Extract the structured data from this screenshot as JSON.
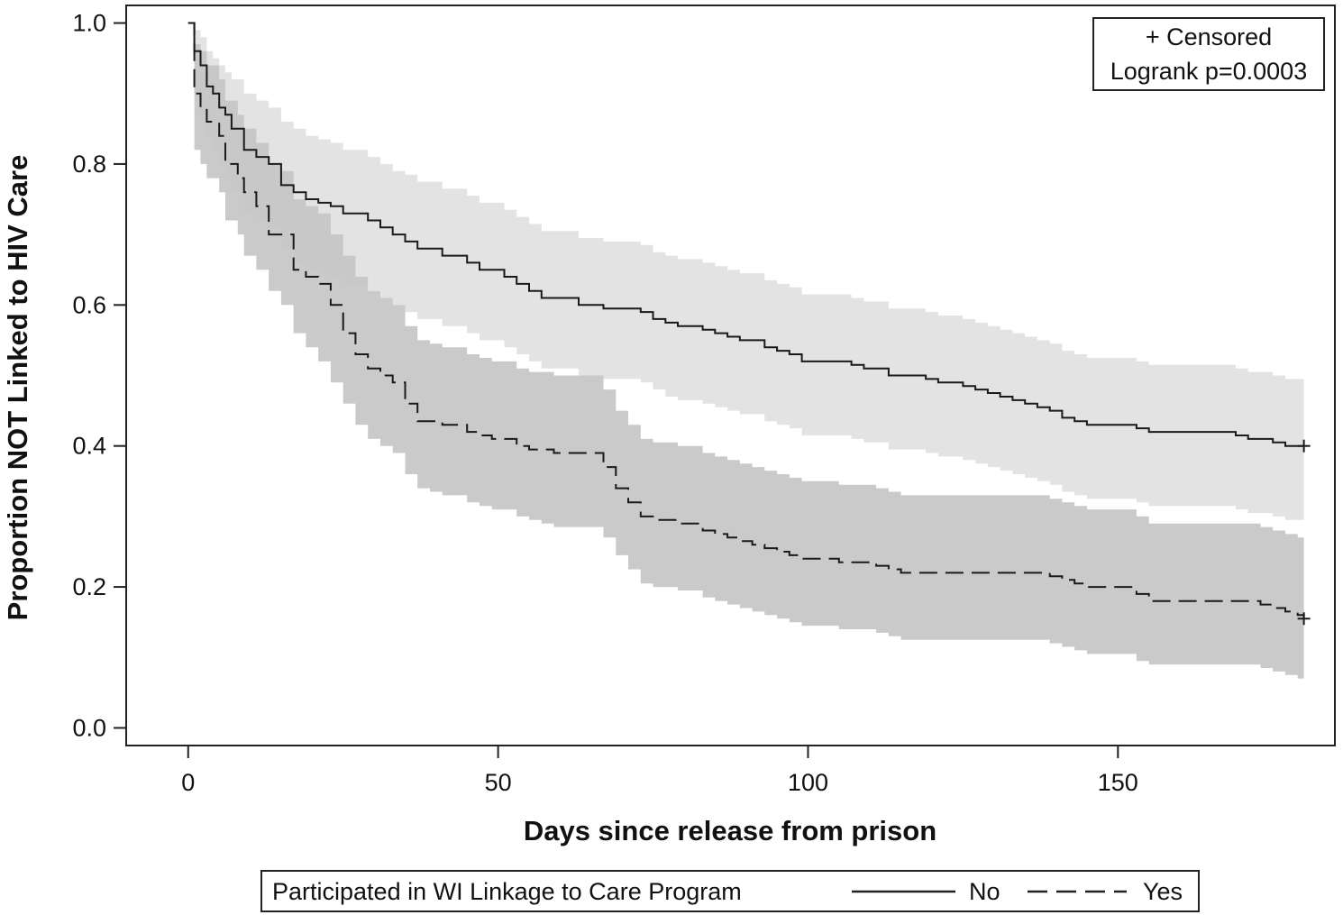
{
  "chart_data": {
    "type": "line",
    "title": "",
    "xlabel": "Days since release from prison",
    "ylabel": "Proportion NOT Linked to HIV Care",
    "xlim": [
      -10,
      185
    ],
    "ylim": [
      -0.025,
      1.025
    ],
    "x_ticks": [
      0,
      50,
      100,
      150
    ],
    "x_tick_labels": [
      "0",
      "50",
      "100",
      "150"
    ],
    "y_ticks": [
      0.0,
      0.2,
      0.4,
      0.6,
      0.8,
      1.0
    ],
    "y_tick_labels": [
      "0.0",
      "0.2",
      "0.4",
      "0.6",
      "0.8",
      "1.0"
    ],
    "grid": false,
    "inset": {
      "censored_label": "+ Censored",
      "logrank_label": "Logrank p=0.0003",
      "placement": "top-right"
    },
    "legend": {
      "title": "Participated in WI Linkage to Care Program",
      "placement": "bottom",
      "entries": [
        "No",
        "Yes"
      ]
    },
    "series": [
      {
        "name": "No",
        "line_style": "solid",
        "band_color": "#e3e3e3",
        "x": [
          0,
          1,
          2,
          3,
          4,
          5,
          6,
          7,
          9,
          11,
          13,
          15,
          17,
          19,
          21,
          23,
          25,
          27,
          29,
          31,
          33,
          35,
          37,
          39,
          41,
          43,
          45,
          47,
          49,
          51,
          53,
          55,
          57,
          59,
          61,
          63,
          65,
          67,
          69,
          71,
          73,
          75,
          77,
          79,
          81,
          83,
          85,
          87,
          89,
          91,
          93,
          95,
          97,
          99,
          101,
          103,
          105,
          107,
          109,
          111,
          113,
          115,
          117,
          119,
          121,
          123,
          125,
          127,
          129,
          131,
          133,
          135,
          137,
          139,
          141,
          143,
          145,
          147,
          149,
          151,
          153,
          155,
          157,
          159,
          161,
          163,
          165,
          167,
          169,
          171,
          173,
          175,
          177,
          179,
          180
        ],
        "y": [
          1.0,
          0.96,
          0.94,
          0.91,
          0.9,
          0.88,
          0.87,
          0.85,
          0.82,
          0.81,
          0.8,
          0.77,
          0.76,
          0.75,
          0.745,
          0.74,
          0.73,
          0.73,
          0.72,
          0.71,
          0.7,
          0.69,
          0.68,
          0.68,
          0.67,
          0.67,
          0.66,
          0.65,
          0.65,
          0.64,
          0.63,
          0.62,
          0.61,
          0.61,
          0.61,
          0.6,
          0.6,
          0.595,
          0.595,
          0.595,
          0.59,
          0.58,
          0.575,
          0.57,
          0.57,
          0.565,
          0.56,
          0.555,
          0.55,
          0.55,
          0.54,
          0.535,
          0.53,
          0.52,
          0.52,
          0.52,
          0.52,
          0.515,
          0.51,
          0.51,
          0.5,
          0.5,
          0.5,
          0.495,
          0.49,
          0.49,
          0.485,
          0.48,
          0.475,
          0.47,
          0.465,
          0.46,
          0.455,
          0.45,
          0.44,
          0.435,
          0.43,
          0.43,
          0.43,
          0.43,
          0.425,
          0.42,
          0.42,
          0.42,
          0.42,
          0.42,
          0.42,
          0.42,
          0.415,
          0.41,
          0.41,
          0.405,
          0.4,
          0.4,
          0.4
        ],
        "lower": [
          1.0,
          0.9,
          0.87,
          0.84,
          0.82,
          0.8,
          0.78,
          0.76,
          0.73,
          0.72,
          0.71,
          0.68,
          0.66,
          0.65,
          0.645,
          0.64,
          0.63,
          0.63,
          0.62,
          0.61,
          0.6,
          0.59,
          0.58,
          0.58,
          0.57,
          0.57,
          0.56,
          0.55,
          0.55,
          0.54,
          0.53,
          0.52,
          0.51,
          0.51,
          0.51,
          0.5,
          0.5,
          0.495,
          0.495,
          0.495,
          0.49,
          0.48,
          0.47,
          0.465,
          0.465,
          0.46,
          0.455,
          0.45,
          0.445,
          0.445,
          0.435,
          0.43,
          0.425,
          0.415,
          0.415,
          0.415,
          0.415,
          0.41,
          0.405,
          0.405,
          0.395,
          0.395,
          0.395,
          0.39,
          0.385,
          0.385,
          0.38,
          0.375,
          0.37,
          0.365,
          0.36,
          0.355,
          0.35,
          0.345,
          0.335,
          0.33,
          0.325,
          0.325,
          0.325,
          0.325,
          0.32,
          0.315,
          0.315,
          0.315,
          0.315,
          0.315,
          0.315,
          0.315,
          0.31,
          0.305,
          0.305,
          0.3,
          0.295,
          0.295,
          0.295
        ],
        "upper": [
          1.0,
          0.99,
          0.98,
          0.96,
          0.95,
          0.94,
          0.93,
          0.92,
          0.9,
          0.89,
          0.88,
          0.86,
          0.85,
          0.84,
          0.835,
          0.83,
          0.82,
          0.82,
          0.81,
          0.8,
          0.79,
          0.785,
          0.775,
          0.775,
          0.765,
          0.765,
          0.755,
          0.745,
          0.745,
          0.735,
          0.725,
          0.715,
          0.705,
          0.705,
          0.705,
          0.695,
          0.695,
          0.69,
          0.69,
          0.69,
          0.685,
          0.675,
          0.67,
          0.665,
          0.665,
          0.66,
          0.655,
          0.65,
          0.645,
          0.645,
          0.635,
          0.63,
          0.625,
          0.615,
          0.615,
          0.615,
          0.615,
          0.61,
          0.605,
          0.605,
          0.595,
          0.595,
          0.595,
          0.59,
          0.585,
          0.585,
          0.58,
          0.575,
          0.57,
          0.565,
          0.56,
          0.555,
          0.55,
          0.545,
          0.535,
          0.53,
          0.525,
          0.525,
          0.525,
          0.525,
          0.52,
          0.515,
          0.515,
          0.515,
          0.515,
          0.515,
          0.515,
          0.515,
          0.51,
          0.505,
          0.505,
          0.5,
          0.495,
          0.495,
          0.495
        ],
        "censor_x": 180,
        "censor_y": 0.4
      },
      {
        "name": "Yes",
        "line_style": "dashed",
        "band_color": "#c4c4c4",
        "x": [
          0,
          1,
          2,
          3,
          5,
          6,
          8,
          9,
          11,
          13,
          15,
          17,
          19,
          21,
          23,
          25,
          27,
          29,
          31,
          33,
          35,
          37,
          39,
          41,
          43,
          45,
          47,
          49,
          51,
          53,
          55,
          57,
          59,
          61,
          63,
          65,
          67,
          69,
          71,
          73,
          75,
          77,
          79,
          81,
          83,
          85,
          87,
          89,
          91,
          93,
          95,
          97,
          99,
          101,
          103,
          105,
          107,
          109,
          111,
          113,
          115,
          117,
          119,
          121,
          123,
          125,
          127,
          129,
          131,
          133,
          135,
          137,
          139,
          141,
          143,
          145,
          147,
          149,
          151,
          153,
          155,
          157,
          159,
          161,
          163,
          165,
          167,
          169,
          171,
          173,
          175,
          177,
          179,
          180
        ],
        "y": [
          1.0,
          0.9,
          0.88,
          0.86,
          0.84,
          0.8,
          0.78,
          0.76,
          0.74,
          0.7,
          0.7,
          0.65,
          0.64,
          0.63,
          0.6,
          0.56,
          0.53,
          0.51,
          0.5,
          0.49,
          0.46,
          0.435,
          0.435,
          0.43,
          0.43,
          0.42,
          0.415,
          0.41,
          0.41,
          0.4,
          0.395,
          0.395,
          0.39,
          0.39,
          0.39,
          0.39,
          0.37,
          0.34,
          0.32,
          0.3,
          0.295,
          0.295,
          0.29,
          0.29,
          0.28,
          0.275,
          0.27,
          0.265,
          0.26,
          0.255,
          0.25,
          0.245,
          0.24,
          0.24,
          0.24,
          0.235,
          0.235,
          0.235,
          0.23,
          0.225,
          0.22,
          0.22,
          0.22,
          0.22,
          0.22,
          0.22,
          0.22,
          0.22,
          0.22,
          0.22,
          0.22,
          0.22,
          0.215,
          0.21,
          0.205,
          0.2,
          0.2,
          0.2,
          0.2,
          0.19,
          0.18,
          0.18,
          0.18,
          0.18,
          0.18,
          0.18,
          0.18,
          0.18,
          0.18,
          0.175,
          0.17,
          0.165,
          0.16,
          0.155
        ],
        "lower": [
          1.0,
          0.82,
          0.8,
          0.78,
          0.76,
          0.72,
          0.7,
          0.67,
          0.65,
          0.62,
          0.6,
          0.56,
          0.54,
          0.52,
          0.49,
          0.46,
          0.43,
          0.41,
          0.4,
          0.39,
          0.36,
          0.34,
          0.335,
          0.33,
          0.33,
          0.32,
          0.315,
          0.31,
          0.31,
          0.3,
          0.295,
          0.29,
          0.285,
          0.285,
          0.285,
          0.285,
          0.27,
          0.245,
          0.225,
          0.205,
          0.2,
          0.2,
          0.195,
          0.195,
          0.185,
          0.18,
          0.175,
          0.17,
          0.165,
          0.16,
          0.155,
          0.15,
          0.145,
          0.145,
          0.145,
          0.14,
          0.14,
          0.14,
          0.135,
          0.13,
          0.125,
          0.125,
          0.125,
          0.125,
          0.125,
          0.125,
          0.125,
          0.125,
          0.125,
          0.125,
          0.125,
          0.125,
          0.12,
          0.115,
          0.11,
          0.105,
          0.105,
          0.105,
          0.105,
          0.095,
          0.09,
          0.09,
          0.09,
          0.09,
          0.09,
          0.09,
          0.09,
          0.09,
          0.09,
          0.085,
          0.08,
          0.075,
          0.07,
          0.065
        ],
        "upper": [
          1.0,
          0.97,
          0.96,
          0.94,
          0.92,
          0.89,
          0.87,
          0.85,
          0.83,
          0.8,
          0.79,
          0.75,
          0.74,
          0.73,
          0.7,
          0.67,
          0.64,
          0.62,
          0.61,
          0.6,
          0.57,
          0.55,
          0.545,
          0.54,
          0.54,
          0.53,
          0.525,
          0.52,
          0.52,
          0.51,
          0.505,
          0.505,
          0.5,
          0.5,
          0.5,
          0.5,
          0.48,
          0.45,
          0.43,
          0.41,
          0.405,
          0.405,
          0.4,
          0.4,
          0.39,
          0.385,
          0.38,
          0.375,
          0.37,
          0.365,
          0.36,
          0.355,
          0.35,
          0.35,
          0.35,
          0.345,
          0.345,
          0.345,
          0.34,
          0.335,
          0.33,
          0.33,
          0.33,
          0.33,
          0.33,
          0.33,
          0.33,
          0.33,
          0.33,
          0.33,
          0.33,
          0.33,
          0.325,
          0.32,
          0.315,
          0.31,
          0.31,
          0.31,
          0.31,
          0.3,
          0.29,
          0.29,
          0.29,
          0.29,
          0.29,
          0.29,
          0.29,
          0.29,
          0.29,
          0.285,
          0.28,
          0.275,
          0.27,
          0.265
        ],
        "censor_x": 180,
        "censor_y": 0.155
      }
    ]
  }
}
